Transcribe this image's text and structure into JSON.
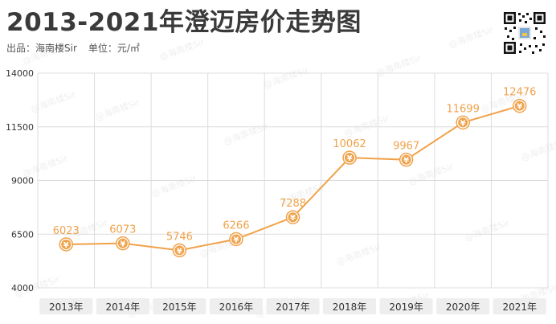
{
  "header": {
    "title": "2013-2021年澄迈房价走势图",
    "source": "出品：海南楼Sir",
    "unit": "单位：元/㎡"
  },
  "watermark_text": "@海南楼Sir",
  "colors": {
    "line": "#f0a24a",
    "marker_fill": "#f0a24a",
    "label": "#f0a24a",
    "grid": "#dcdcdc",
    "axis_text": "#333333"
  },
  "chart_data": {
    "type": "line",
    "title": "2013-2021年澄迈房价走势图",
    "categories": [
      "2013年",
      "2014年",
      "2015年",
      "2016年",
      "2017年",
      "2018年",
      "2019年",
      "2020年",
      "2021年"
    ],
    "values": [
      6023,
      6073,
      5746,
      6266,
      7288,
      10062,
      9967,
      11699,
      12476
    ],
    "ylim": [
      4000,
      14000
    ],
    "yticks": [
      4000,
      6500,
      9000,
      11500,
      14000
    ],
    "grid": true,
    "marker_symbol": "¥"
  }
}
